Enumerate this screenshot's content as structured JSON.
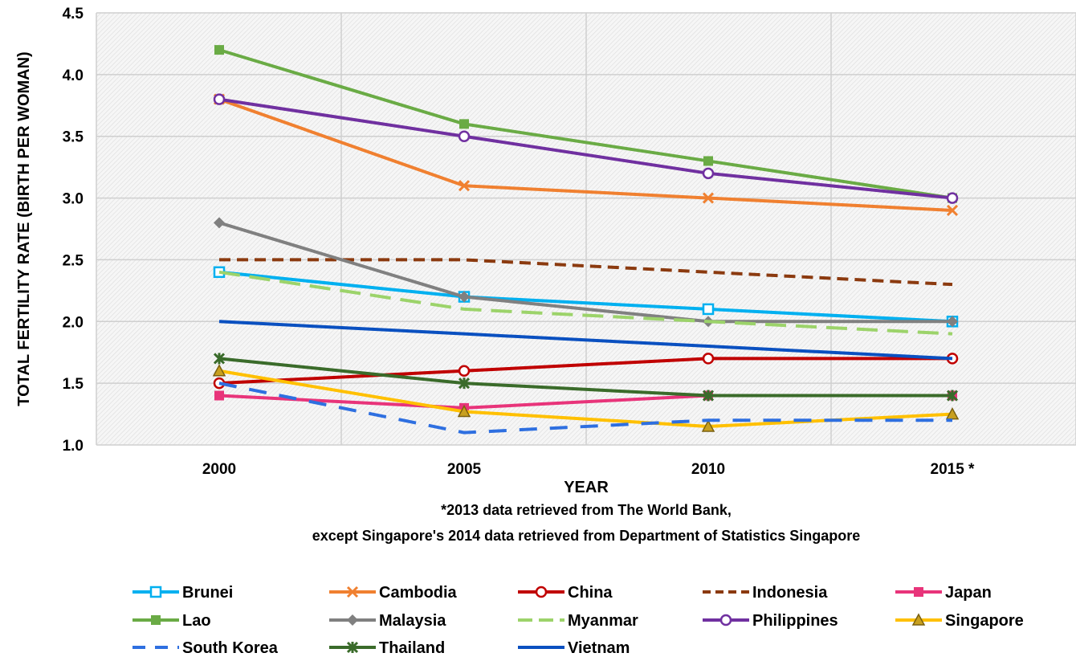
{
  "chart_data": {
    "type": "line",
    "title": "",
    "xlabel": "YEAR",
    "ylabel": "TOTAL  FERTILITY RATE  (BIRTH PER  WOMAN)",
    "categories": [
      "2000",
      "2005",
      "2010",
      "2015 *"
    ],
    "ylim": [
      1.0,
      4.5
    ],
    "yticks": [
      "1.0",
      "1.5",
      "2.0",
      "2.5",
      "3.0",
      "3.5",
      "4.0",
      "4.5"
    ],
    "grid": true,
    "legend_position": "bottom",
    "notes": [
      "*2013 data retrieved from The World Bank,",
      "except Singapore's 2014 data retrieved from Department of Statistics Singapore"
    ],
    "series": [
      {
        "name": "Brunei",
        "values": [
          2.4,
          2.2,
          2.1,
          2.0
        ],
        "color": "#00b0f0",
        "marker": "square-open",
        "dash": "solid"
      },
      {
        "name": "Cambodia",
        "values": [
          3.8,
          3.1,
          3.0,
          2.9
        ],
        "color": "#f08030",
        "marker": "x",
        "dash": "solid"
      },
      {
        "name": "China",
        "values": [
          1.5,
          1.6,
          1.7,
          1.7
        ],
        "color": "#c00000",
        "marker": "circle-open",
        "dash": "solid"
      },
      {
        "name": "Indonesia",
        "values": [
          2.5,
          2.5,
          2.4,
          2.3
        ],
        "color": "#8b3a0f",
        "marker": "none",
        "dash": "dash"
      },
      {
        "name": "Japan",
        "values": [
          1.4,
          1.3,
          1.4,
          1.4
        ],
        "color": "#e8347a",
        "marker": "square",
        "dash": "solid"
      },
      {
        "name": "Lao",
        "values": [
          4.2,
          3.6,
          3.3,
          3.0
        ],
        "color": "#6aab45",
        "marker": "square",
        "dash": "solid"
      },
      {
        "name": "Malaysia",
        "values": [
          2.8,
          2.2,
          2.0,
          2.0
        ],
        "color": "#808080",
        "marker": "diamond",
        "dash": "solid"
      },
      {
        "name": "Myanmar",
        "values": [
          2.4,
          2.1,
          2.0,
          1.9
        ],
        "color": "#9cd36a",
        "marker": "none",
        "dash": "longdash"
      },
      {
        "name": "Philippines",
        "values": [
          3.8,
          3.5,
          3.2,
          3.0
        ],
        "color": "#7030a0",
        "marker": "circle-open",
        "dash": "solid"
      },
      {
        "name": "Singapore",
        "values": [
          1.6,
          1.27,
          1.15,
          1.25
        ],
        "color": "#ffc000",
        "marker": "triangle",
        "dash": "solid"
      },
      {
        "name": "South Korea",
        "values": [
          1.5,
          1.1,
          1.2,
          1.2
        ],
        "color": "#2e6fe0",
        "marker": "none",
        "dash": "bigdash"
      },
      {
        "name": "Thailand",
        "values": [
          1.7,
          1.5,
          1.4,
          1.4
        ],
        "color": "#3a6b2a",
        "marker": "star",
        "dash": "solid"
      },
      {
        "name": "Vietnam",
        "values": [
          2.0,
          1.9,
          1.8,
          1.7
        ],
        "color": "#0a50c0",
        "marker": "none",
        "dash": "solid"
      }
    ]
  }
}
